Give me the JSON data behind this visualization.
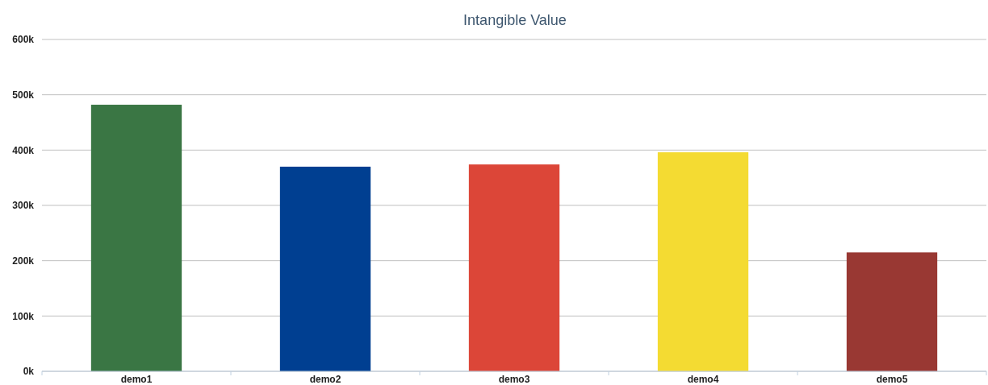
{
  "chart_data": {
    "type": "bar",
    "title": "Intangible Value",
    "categories": [
      "demo1",
      "demo2",
      "demo3",
      "demo4",
      "demo5"
    ],
    "values": [
      482000,
      370000,
      374000,
      396000,
      215000
    ],
    "colors": [
      "#3a7644",
      "#003f91",
      "#dc4638",
      "#f4db32",
      "#993833"
    ],
    "ylim": [
      0,
      600000
    ],
    "yticks": [
      {
        "value": 0,
        "label": "0k"
      },
      {
        "value": 100000,
        "label": "100k"
      },
      {
        "value": 200000,
        "label": "200k"
      },
      {
        "value": 300000,
        "label": "300k"
      },
      {
        "value": 400000,
        "label": "400k"
      },
      {
        "value": 500000,
        "label": "500k"
      },
      {
        "value": 600000,
        "label": "600k"
      }
    ],
    "grid": "y"
  }
}
